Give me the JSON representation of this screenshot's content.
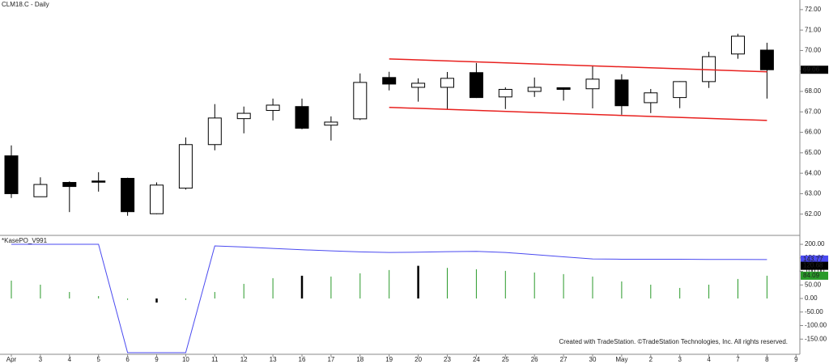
{
  "chart_data": [
    {
      "type": "candlestick",
      "title": "CLM18.C - Daily",
      "categories": [
        "Apr",
        "3",
        "4",
        "5",
        "6",
        "9",
        "10",
        "11",
        "12",
        "13",
        "16",
        "17",
        "18",
        "19",
        "20",
        "23",
        "24",
        "25",
        "26",
        "27",
        "30",
        "May",
        "2",
        "3",
        "4",
        "7",
        "8",
        "9"
      ],
      "open": [
        64.85,
        62.85,
        63.55,
        63.62,
        63.75,
        62.02,
        63.27,
        65.4,
        66.67,
        67.07,
        67.26,
        66.35,
        66.66,
        68.68,
        68.2,
        68.2,
        68.92,
        67.73,
        68.0,
        68.18,
        68.13,
        68.56,
        67.45,
        67.7,
        68.48,
        69.83,
        70.02,
        null
      ],
      "high": [
        65.36,
        63.8,
        63.6,
        64.05,
        63.78,
        63.55,
        65.75,
        67.38,
        67.26,
        67.65,
        67.65,
        66.78,
        68.88,
        68.96,
        68.64,
        68.95,
        69.39,
        68.2,
        68.68,
        68.2,
        69.27,
        68.84,
        68.12,
        68.5,
        69.94,
        70.82,
        70.38,
        null
      ],
      "low": [
        62.79,
        62.85,
        62.1,
        63.1,
        61.92,
        62.0,
        63.2,
        65.12,
        65.95,
        66.58,
        66.15,
        65.6,
        66.6,
        68.05,
        67.5,
        67.15,
        67.68,
        67.14,
        67.73,
        67.55,
        67.17,
        66.86,
        66.94,
        67.18,
        68.17,
        69.6,
        67.65,
        null
      ],
      "close": [
        63.0,
        63.45,
        63.35,
        63.58,
        62.12,
        63.42,
        65.4,
        66.7,
        66.93,
        67.33,
        66.2,
        66.5,
        68.44,
        68.36,
        68.4,
        68.64,
        67.7,
        68.1,
        68.2,
        68.1,
        68.6,
        67.3,
        67.93,
        68.48,
        69.7,
        70.7,
        69.06,
        null
      ],
      "up_color": "#ffffff",
      "down_color": "#000000",
      "ylim": [
        61.0,
        72.47
      ],
      "yticks": [
        {
          "value": 72,
          "label": "72.00"
        },
        {
          "value": 71,
          "label": "71.00"
        },
        {
          "value": 70,
          "label": "70.00"
        },
        {
          "value": 69,
          "label": "69.00"
        },
        {
          "value": 68,
          "label": "68.00"
        },
        {
          "value": 67,
          "label": "67.00"
        },
        {
          "value": 66,
          "label": "66.00"
        },
        {
          "value": 65,
          "label": "65.00"
        },
        {
          "value": 64,
          "label": "64.00"
        },
        {
          "value": 63,
          "label": "63.00"
        },
        {
          "value": 62,
          "label": "62.00"
        }
      ],
      "trendlines": [
        {
          "color": "#e8201e",
          "from": "19",
          "to": "8",
          "values": [
            69.59,
            68.96
          ]
        },
        {
          "color": "#e8201e",
          "from": "19",
          "to": "8",
          "values": [
            67.22,
            66.58
          ]
        }
      ]
    },
    {
      "type": "oscillator",
      "title": "*KasePO_V991",
      "series": [
        {
          "kind": "line",
          "color": "#4a4af0",
          "values": [
            200,
            200,
            200,
            200,
            -200,
            -200,
            -200,
            194,
            190,
            185,
            180,
            176,
            172,
            170,
            171,
            173,
            174,
            170,
            162,
            154,
            146,
            145,
            145,
            145,
            144,
            144,
            143.77
          ]
        },
        {
          "kind": "bar",
          "colors": [
            "#2a9a2a",
            "#2a9a2a",
            "#2a9a2a",
            "#2a9a2a",
            "#2a9a2a",
            "#000000",
            "#2a9a2a",
            "#2a9a2a",
            "#2a9a2a",
            "#2a9a2a",
            "#000000",
            "#2a9a2a",
            "#2a9a2a",
            "#2a9a2a",
            "#000000",
            "#2a9a2a",
            "#2a9a2a",
            "#2a9a2a",
            "#2a9a2a",
            "#2a9a2a",
            "#2a9a2a",
            "#2a9a2a",
            "#2a9a2a",
            "#2a9a2a",
            "#2a9a2a",
            "#2a9a2a",
            "#2a9a2a"
          ],
          "values": [
            66,
            51,
            24,
            9,
            -5,
            -15,
            -5,
            24,
            54,
            75,
            84,
            81,
            93,
            105,
            120.68,
            113,
            108,
            102,
            96,
            90,
            81,
            63,
            51,
            39,
            51,
            72,
            84.09
          ]
        }
      ],
      "ylim": [
        -212,
        230
      ],
      "yticks": [
        {
          "value": 200,
          "label": "200.00"
        },
        {
          "value": 150,
          "label": "150.00"
        },
        {
          "value": 100,
          "label": "100.00"
        },
        {
          "value": 50,
          "label": "50.00"
        },
        {
          "value": 0,
          "label": "0.00"
        },
        {
          "value": -50,
          "label": "-50.00"
        },
        {
          "value": -100,
          "label": "-100.00"
        },
        {
          "value": -150,
          "label": "-150.00"
        }
      ],
      "note": "Created with TradeStation. ©TradeStation Technologies, Inc. All rights reserved."
    }
  ]
}
